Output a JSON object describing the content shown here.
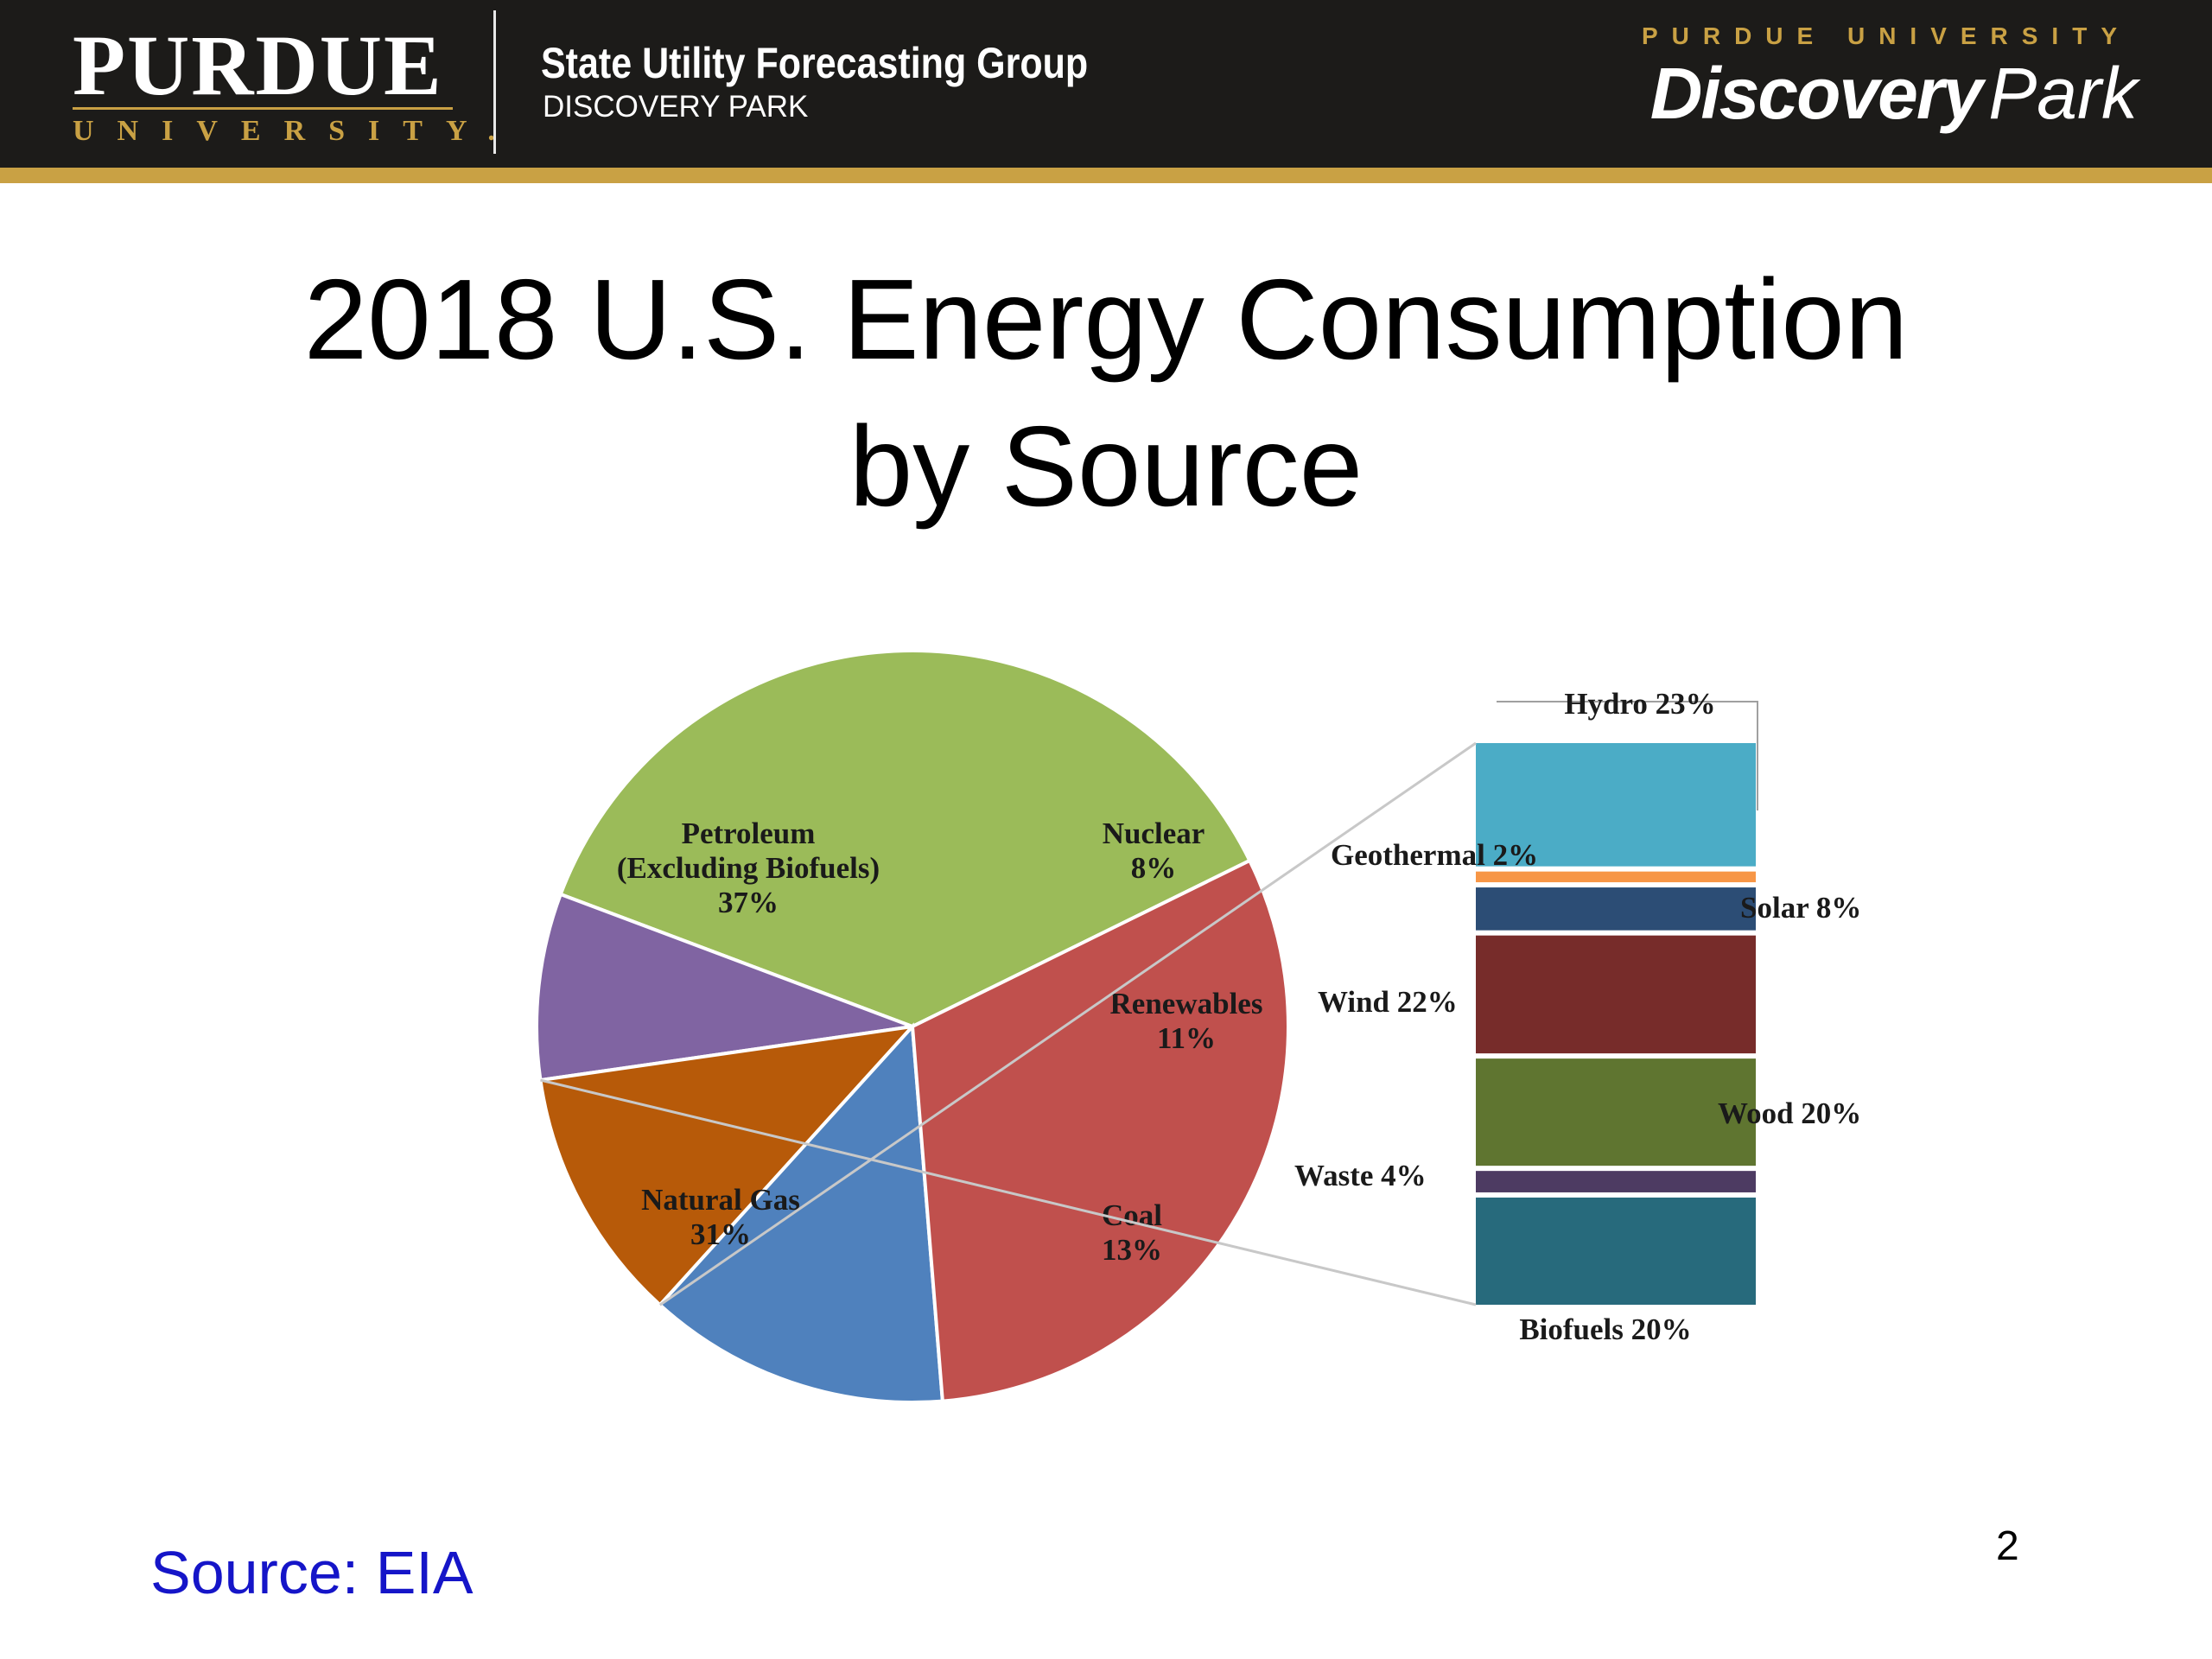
{
  "header": {
    "university_name": "PURDUE",
    "university_word": "UNIVERSITY.",
    "group_title": "State Utility Forecasting Group",
    "group_subtitle": "DISCOVERY PARK",
    "dp_top": "PURDUE UNIVERSITY",
    "dp_main": "Discovery",
    "dp_park": "Park",
    "colors": {
      "bar": "#1c1b19",
      "gold": "#c9a144"
    }
  },
  "slide": {
    "title_line1": "2018 U.S. Energy Consumption",
    "title_line2": "by Source",
    "source": "Source: EIA",
    "page_number": "2"
  },
  "chart_data": [
    {
      "type": "pie",
      "title": "",
      "slices": [
        {
          "name": "Petroleum",
          "label_lines": [
            "Petroleum",
            "(Excluding Biofuels)",
            "37%"
          ],
          "value": 37,
          "color": "#9bbb59"
        },
        {
          "name": "Nuclear",
          "label_lines": [
            "Nuclear",
            "8%"
          ],
          "value": 8,
          "color": "#8064a2"
        },
        {
          "name": "Renewables",
          "label_lines": [
            "Renewables",
            "11%"
          ],
          "value": 11,
          "color": "#b75a09"
        },
        {
          "name": "Coal",
          "label_lines": [
            "Coal",
            "13%"
          ],
          "value": 13,
          "color": "#4f81bd"
        },
        {
          "name": "Natural Gas",
          "label_lines": [
            "Natural Gas",
            "31%"
          ],
          "value": 31,
          "color": "#c0504d"
        }
      ]
    },
    {
      "type": "bar",
      "stacked": true,
      "breakdown_of": "Renewables",
      "segments": [
        {
          "name": "Hydro",
          "label": "Hydro 23%",
          "value": 23,
          "color": "#4bacc6"
        },
        {
          "name": "Geothermal",
          "label": "Geothermal 2%",
          "value": 2,
          "color": "#f79646"
        },
        {
          "name": "Solar",
          "label": "Solar 8%",
          "value": 8,
          "color": "#2c4d75"
        },
        {
          "name": "Wind",
          "label": "Wind 22%",
          "value": 22,
          "color": "#772c2a"
        },
        {
          "name": "Wood",
          "label": "Wood 20%",
          "value": 20,
          "color": "#5f7530"
        },
        {
          "name": "Waste",
          "label": "Waste 4%",
          "value": 4,
          "color": "#4d3b62"
        },
        {
          "name": "Biofuels",
          "label": "Biofuels 20%",
          "value": 20,
          "color": "#276a7c"
        }
      ]
    }
  ]
}
